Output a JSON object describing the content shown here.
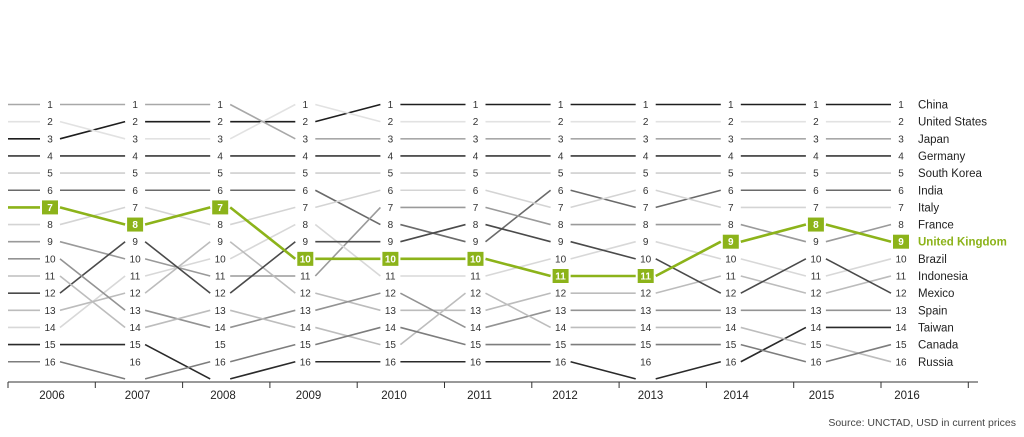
{
  "chart_data": {
    "type": "line",
    "subtype": "bump-chart",
    "title": "",
    "xlabel": "",
    "ylabel": "",
    "years": [
      2006,
      2007,
      2008,
      2009,
      2010,
      2011,
      2012,
      2013,
      2014,
      2015,
      2016
    ],
    "ylim": [
      1,
      16
    ],
    "y_inverted": true,
    "highlight": "United Kingdom",
    "highlight_color": "#8cb31a",
    "rank_labels": [
      1,
      2,
      3,
      4,
      5,
      6,
      7,
      8,
      9,
      10,
      11,
      12,
      13,
      14,
      15,
      16
    ],
    "series": [
      {
        "name": "China",
        "color": "#1e1e1e",
        "ranks": [
          3,
          2,
          2,
          2,
          1,
          1,
          1,
          1,
          1,
          1,
          1
        ]
      },
      {
        "name": "United States",
        "color": "#e2e2e2",
        "ranks": [
          2,
          3,
          3,
          1,
          2,
          2,
          2,
          2,
          2,
          2,
          2
        ]
      },
      {
        "name": "Japan",
        "color": "#a8a8a8",
        "ranks": [
          1,
          1,
          1,
          3,
          3,
          3,
          3,
          3,
          3,
          3,
          3
        ]
      },
      {
        "name": "Germany",
        "color": "#3a3a3a",
        "ranks": [
          4,
          4,
          4,
          4,
          4,
          4,
          4,
          4,
          4,
          4,
          4
        ]
      },
      {
        "name": "South Korea",
        "color": "#cfcfcf",
        "ranks": [
          5,
          5,
          5,
          5,
          5,
          5,
          5,
          5,
          5,
          5,
          5
        ]
      },
      {
        "name": "India",
        "color": "#6a6a6a",
        "ranks": [
          6,
          6,
          6,
          6,
          8,
          9,
          6,
          7,
          6,
          6,
          6
        ]
      },
      {
        "name": "Italy",
        "color": "#d4d4d4",
        "ranks": [
          8,
          7,
          8,
          7,
          6,
          6,
          7,
          6,
          7,
          7,
          7
        ]
      },
      {
        "name": "France",
        "color": "#9a9a9a",
        "ranks": [
          9,
          10,
          11,
          11,
          7,
          7,
          8,
          8,
          8,
          9,
          8
        ]
      },
      {
        "name": "United Kingdom",
        "color": "#8cb31a",
        "ranks": [
          7,
          8,
          7,
          10,
          10,
          10,
          11,
          11,
          9,
          8,
          9
        ]
      },
      {
        "name": "Brazil",
        "color": "#d8d8d8",
        "ranks": [
          14,
          11,
          10,
          8,
          11,
          11,
          10,
          9,
          10,
          11,
          10
        ]
      },
      {
        "name": "Indonesia",
        "color": "#bcbcbc",
        "ranks": [
          13,
          12,
          9,
          12,
          13,
          13,
          12,
          12,
          11,
          12,
          11
        ]
      },
      {
        "name": "Mexico",
        "color": "#4a4a4a",
        "ranks": [
          12,
          9,
          12,
          9,
          9,
          8,
          9,
          10,
          12,
          10,
          12
        ]
      },
      {
        "name": "Spain",
        "color": "#939393",
        "ranks": [
          10,
          13,
          14,
          13,
          12,
          14,
          13,
          13,
          13,
          13,
          13
        ]
      },
      {
        "name": "Taiwan",
        "color": "#2a2a2a",
        "ranks": [
          15,
          15,
          17,
          16,
          16,
          16,
          16,
          17,
          16,
          14,
          14
        ]
      },
      {
        "name": "Russia",
        "color": "#bdbdbd",
        "ranks": [
          11,
          14,
          13,
          14,
          15,
          12,
          14,
          14,
          14,
          15,
          16
        ]
      },
      {
        "name": "Canada",
        "color": "#7d7d7d",
        "ranks": [
          16,
          17,
          16,
          15,
          14,
          15,
          15,
          15,
          15,
          16,
          15
        ]
      }
    ],
    "source": "Source: UNCTAD, USD in current prices"
  }
}
